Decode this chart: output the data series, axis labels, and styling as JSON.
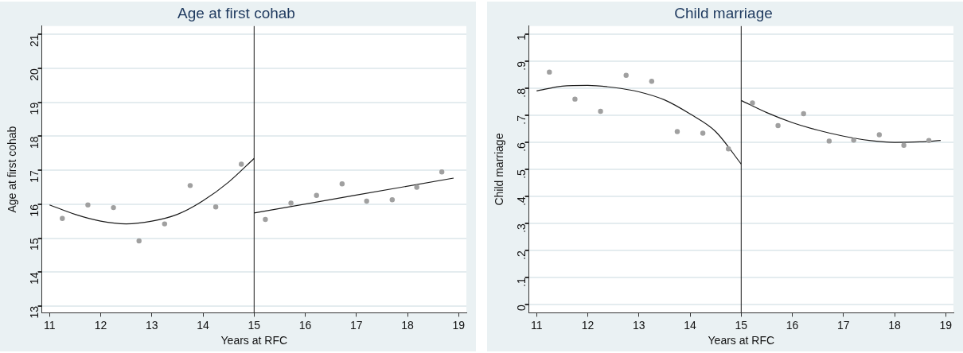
{
  "chart_data": [
    {
      "type": "scatter",
      "title": "Age at first cohab",
      "xlabel": "Years at RFC",
      "ylabel": "Age at first cohab",
      "xlim": [
        10.85,
        19.15
      ],
      "xticks": [
        11,
        12,
        13,
        14,
        15,
        16,
        17,
        18,
        19
      ],
      "ylim": [
        12.8,
        21.25
      ],
      "yticks": [
        13,
        14,
        15,
        16,
        17,
        18,
        19,
        20,
        21
      ],
      "grid": "y",
      "legend": false,
      "marker": "circle",
      "ref_lines": [
        {
          "axis": "x",
          "value": 15,
          "color": "#1a1a1a"
        }
      ],
      "series": [
        {
          "color": "#a0a0a0",
          "x": [
            11.25,
            11.75,
            12.25,
            12.75,
            13.25,
            13.75,
            14.25,
            14.75
          ],
          "values": [
            15.58,
            15.98,
            15.9,
            14.92,
            15.42,
            16.55,
            15.92,
            17.18
          ]
        },
        {
          "color": "#a0a0a0",
          "x": [
            15.22,
            15.72,
            16.22,
            16.72,
            17.2,
            17.7,
            18.18,
            18.67
          ],
          "values": [
            15.55,
            16.03,
            16.26,
            16.6,
            16.09,
            16.13,
            16.5,
            16.95
          ]
        },
        {
          "type": "line",
          "color": "#1a1a1a",
          "marker": "none",
          "line_style": "solid",
          "x": [
            11,
            11.5,
            12,
            12.5,
            13,
            13.5,
            14,
            14.5,
            15
          ],
          "values": [
            15.98,
            15.7,
            15.5,
            15.42,
            15.5,
            15.7,
            16.1,
            16.65,
            17.35
          ]
        },
        {
          "type": "line",
          "color": "#1a1a1a",
          "marker": "none",
          "line_style": "solid",
          "x": [
            15,
            18.9
          ],
          "values": [
            15.74,
            16.77
          ]
        }
      ]
    },
    {
      "type": "scatter",
      "title": "Child marriage",
      "xlabel": "Years at RFC",
      "ylabel": "Child marriage",
      "xlim": [
        10.85,
        19.15
      ],
      "xticks": [
        11,
        12,
        13,
        14,
        15,
        16,
        17,
        18,
        19
      ],
      "ylim": [
        -0.03,
        1.03
      ],
      "yticks": [
        0,
        {
          "value": 0.1,
          "label": ".1"
        },
        {
          "value": 0.2,
          "label": ".2"
        },
        {
          "value": 0.3,
          "label": ".3"
        },
        {
          "value": 0.4,
          "label": ".4"
        },
        {
          "value": 0.5,
          "label": ".5"
        },
        {
          "value": 0.6,
          "label": ".6"
        },
        {
          "value": 0.7,
          "label": ".7"
        },
        {
          "value": 0.8,
          "label": ".8"
        },
        {
          "value": 0.9,
          "label": ".9"
        },
        1
      ],
      "grid": "y",
      "legend": false,
      "marker": "circle",
      "ref_lines": [
        {
          "axis": "x",
          "value": 15,
          "color": "#1a1a1a"
        }
      ],
      "series": [
        {
          "color": "#a0a0a0",
          "x": [
            11.25,
            11.75,
            12.25,
            12.75,
            13.25,
            13.75,
            14.25,
            14.75
          ],
          "values": [
            0.86,
            0.76,
            0.715,
            0.848,
            0.826,
            0.64,
            0.634,
            0.576
          ]
        },
        {
          "color": "#a0a0a0",
          "x": [
            15.22,
            15.72,
            16.22,
            16.72,
            17.2,
            17.7,
            18.18,
            18.67
          ],
          "values": [
            0.746,
            0.662,
            0.706,
            0.605,
            0.608,
            0.628,
            0.589,
            0.607
          ]
        },
        {
          "type": "line",
          "color": "#1a1a1a",
          "marker": "none",
          "line_style": "solid",
          "x": [
            11,
            11.5,
            12,
            12.5,
            13,
            13.5,
            14,
            14.5,
            15
          ],
          "values": [
            0.79,
            0.808,
            0.811,
            0.803,
            0.787,
            0.757,
            0.705,
            0.64,
            0.52
          ]
        },
        {
          "type": "line",
          "color": "#1a1a1a",
          "marker": "none",
          "line_style": "solid",
          "x": [
            15,
            15.5,
            16,
            16.5,
            17,
            17.5,
            18,
            18.5,
            18.9
          ],
          "values": [
            0.755,
            0.71,
            0.673,
            0.645,
            0.623,
            0.607,
            0.6,
            0.602,
            0.607
          ]
        }
      ]
    }
  ]
}
